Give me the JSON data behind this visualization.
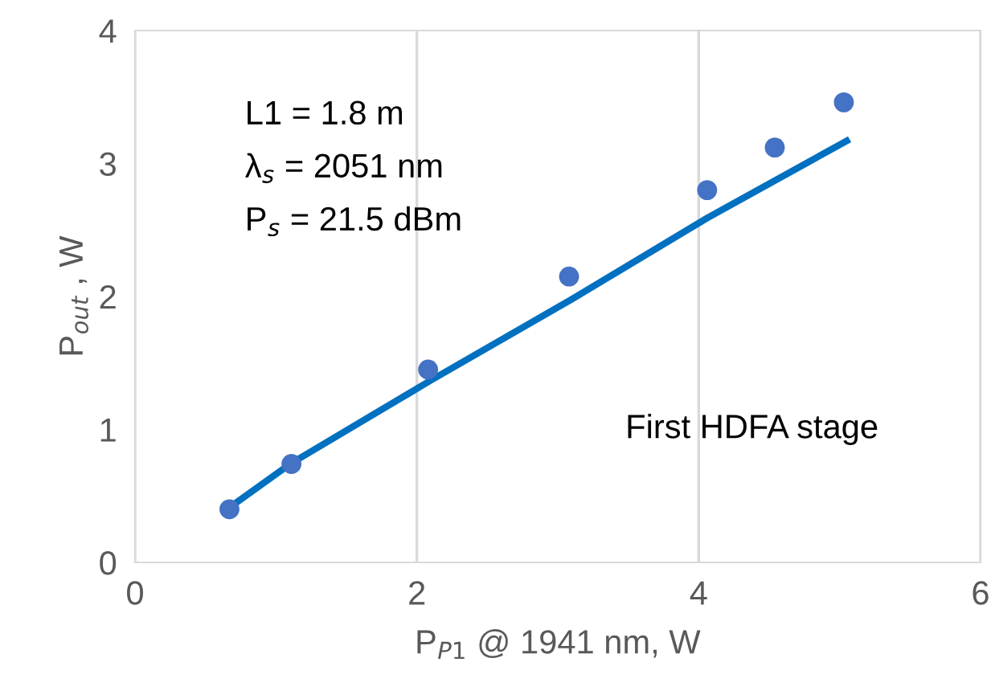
{
  "chart_data": {
    "type": "scatter",
    "xlabel": "P$_{P1}$ @ 1941 nm, W",
    "ylabel": "P$_{out}$ , W",
    "series": [
      {
        "color": "#4472c4",
        "marker": "circle",
        "x": [
          0.67,
          1.11,
          2.08,
          3.08,
          4.06,
          4.54,
          5.03
        ],
        "values": [
          0.4,
          0.74,
          1.45,
          2.15,
          2.8,
          3.12,
          3.46
        ]
      },
      {
        "type": "line",
        "color": "#0070c0",
        "x": [
          0.68,
          1.1,
          2.1,
          3.1,
          4.06,
          5.05
        ],
        "values": [
          0.42,
          0.74,
          1.37,
          1.98,
          2.59,
          3.17
        ]
      }
    ],
    "xlim": [
      0,
      6
    ],
    "xticks": [
      0,
      2,
      4,
      6
    ],
    "ylim": [
      0,
      4
    ],
    "yticks": [
      0,
      1,
      2,
      3,
      4
    ],
    "grid": "x",
    "annotations": [
      {
        "text": "L1 = 1.8 m"
      },
      {
        "text": "λ$_{s}$ = 2051 nm"
      },
      {
        "text": "P$_{s}$ = 21.5 dBm"
      },
      {
        "text": "First HDFA stage"
      }
    ]
  }
}
